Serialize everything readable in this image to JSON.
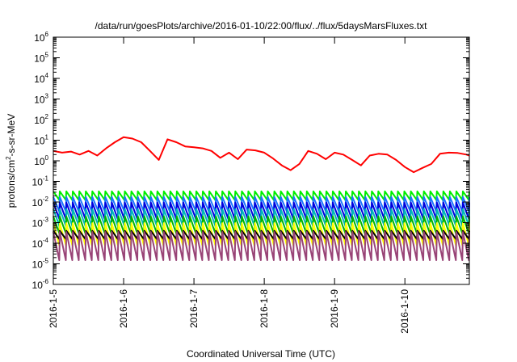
{
  "chart_data": {
    "type": "line",
    "title": "/data/run/goesPlots/archive/2016-01-10/22:00/flux/../flux/5daysMarsFluxes.txt",
    "xlabel": "Coordinated Universal Time (UTC)",
    "ylabel": {
      "prefix": "protons/cm",
      "superscript": "2",
      "suffix": "-s-sr-MeV"
    },
    "yscale": "log",
    "ylim": [
      1e-06,
      1000000.0
    ],
    "y_ticks": [
      {
        "base": "10",
        "exp": "-6",
        "value": 1e-06
      },
      {
        "base": "10",
        "exp": "-5",
        "value": 1e-05
      },
      {
        "base": "10",
        "exp": "-4",
        "value": 0.0001
      },
      {
        "base": "10",
        "exp": "-3",
        "value": 0.001
      },
      {
        "base": "10",
        "exp": "-2",
        "value": 0.01
      },
      {
        "base": "10",
        "exp": "-1",
        "value": 0.1
      },
      {
        "base": "10",
        "exp": "0",
        "value": 1
      },
      {
        "base": "10",
        "exp": "1",
        "value": 10
      },
      {
        "base": "10",
        "exp": "2",
        "value": 100
      },
      {
        "base": "10",
        "exp": "3",
        "value": 1000
      },
      {
        "base": "10",
        "exp": "4",
        "value": 10000
      },
      {
        "base": "10",
        "exp": "5",
        "value": 100000
      },
      {
        "base": "10",
        "exp": "6",
        "value": 1000000
      }
    ],
    "xlim": [
      "2016-01-05 00:00",
      "2016-01-10 22:00"
    ],
    "x_ticks": [
      {
        "label": "2016-1-5",
        "value": "2016-01-05"
      },
      {
        "label": "2016-1-6",
        "value": "2016-01-06"
      },
      {
        "label": "2016-1-7",
        "value": "2016-01-07"
      },
      {
        "label": "2016-1-8",
        "value": "2016-01-08"
      },
      {
        "label": "2016-1-9",
        "value": "2016-01-09"
      },
      {
        "label": "2016-1-10",
        "value": "2016-01-10"
      }
    ],
    "grid": false,
    "legend": "none",
    "series": [
      {
        "color": "#ff0000",
        "x": [
          "2016-01-05 00:00",
          "2016-01-05 03:00",
          "2016-01-05 06:00",
          "2016-01-05 09:00",
          "2016-01-05 12:00",
          "2016-01-05 15:00",
          "2016-01-05 18:00",
          "2016-01-05 21:00",
          "2016-01-06 00:00",
          "2016-01-06 03:00",
          "2016-01-06 06:00",
          "2016-01-06 09:00",
          "2016-01-06 12:00",
          "2016-01-06 15:00",
          "2016-01-06 18:00",
          "2016-01-06 21:00",
          "2016-01-07 00:00",
          "2016-01-07 03:00",
          "2016-01-07 06:00",
          "2016-01-07 09:00",
          "2016-01-07 12:00",
          "2016-01-07 15:00",
          "2016-01-07 18:00",
          "2016-01-07 21:00",
          "2016-01-08 00:00",
          "2016-01-08 03:00",
          "2016-01-08 06:00",
          "2016-01-08 09:00",
          "2016-01-08 12:00",
          "2016-01-08 15:00",
          "2016-01-08 18:00",
          "2016-01-08 21:00",
          "2016-01-09 00:00",
          "2016-01-09 03:00",
          "2016-01-09 06:00",
          "2016-01-09 09:00",
          "2016-01-09 12:00",
          "2016-01-09 15:00",
          "2016-01-09 18:00",
          "2016-01-09 21:00",
          "2016-01-10 00:00",
          "2016-01-10 03:00",
          "2016-01-10 06:00",
          "2016-01-10 09:00",
          "2016-01-10 12:00",
          "2016-01-10 15:00",
          "2016-01-10 18:00",
          "2016-01-10 21:00",
          "2016-01-10 22:00"
        ],
        "values": [
          3,
          2.5,
          2.8,
          2,
          3,
          1.8,
          4,
          8,
          14,
          12,
          8,
          3,
          1.1,
          11,
          8,
          5,
          4.5,
          4,
          3,
          1.4,
          2.5,
          1.2,
          3.5,
          3.2,
          2.5,
          1.3,
          0.6,
          0.35,
          0.7,
          3,
          2.2,
          1.2,
          2.5,
          2,
          1.1,
          0.6,
          1.8,
          2.2,
          2,
          1.1,
          0.5,
          0.28,
          0.45,
          0.7,
          2.2,
          2.5,
          2.4,
          2,
          1.8
        ]
      },
      {
        "color": "#00ee00",
        "band": [
          0.0125,
          0.033
        ],
        "cycles": 64,
        "values": "sawtooth"
      },
      {
        "color": "#1a74ff",
        "band": [
          0.0035,
          0.0175
        ],
        "cycles": 64,
        "values": "sawtooth"
      },
      {
        "color": "#0000dd",
        "band": [
          0.0015,
          0.0095
        ],
        "cycles": 64,
        "values": "sawtooth"
      },
      {
        "color": "#00b8b8",
        "band": [
          0.0007,
          0.0045
        ],
        "cycles": 64,
        "values": "sawtooth"
      },
      {
        "color": "#00b400",
        "band": [
          0.0003,
          0.002
        ],
        "cycles": 64,
        "values": "sawtooth"
      },
      {
        "color": "#ffff00",
        "band": [
          8e-05,
          0.00095
        ],
        "cycles": 64,
        "values": "sawtooth"
      },
      {
        "color": "#000000",
        "band": [
          0.00016,
          0.0004
        ],
        "cycles": 64,
        "values": "sawtooth"
      },
      {
        "color": "#994477",
        "band": [
          1.5e-05,
          0.00035
        ],
        "cycles": 64,
        "values": "sawtooth"
      }
    ]
  }
}
